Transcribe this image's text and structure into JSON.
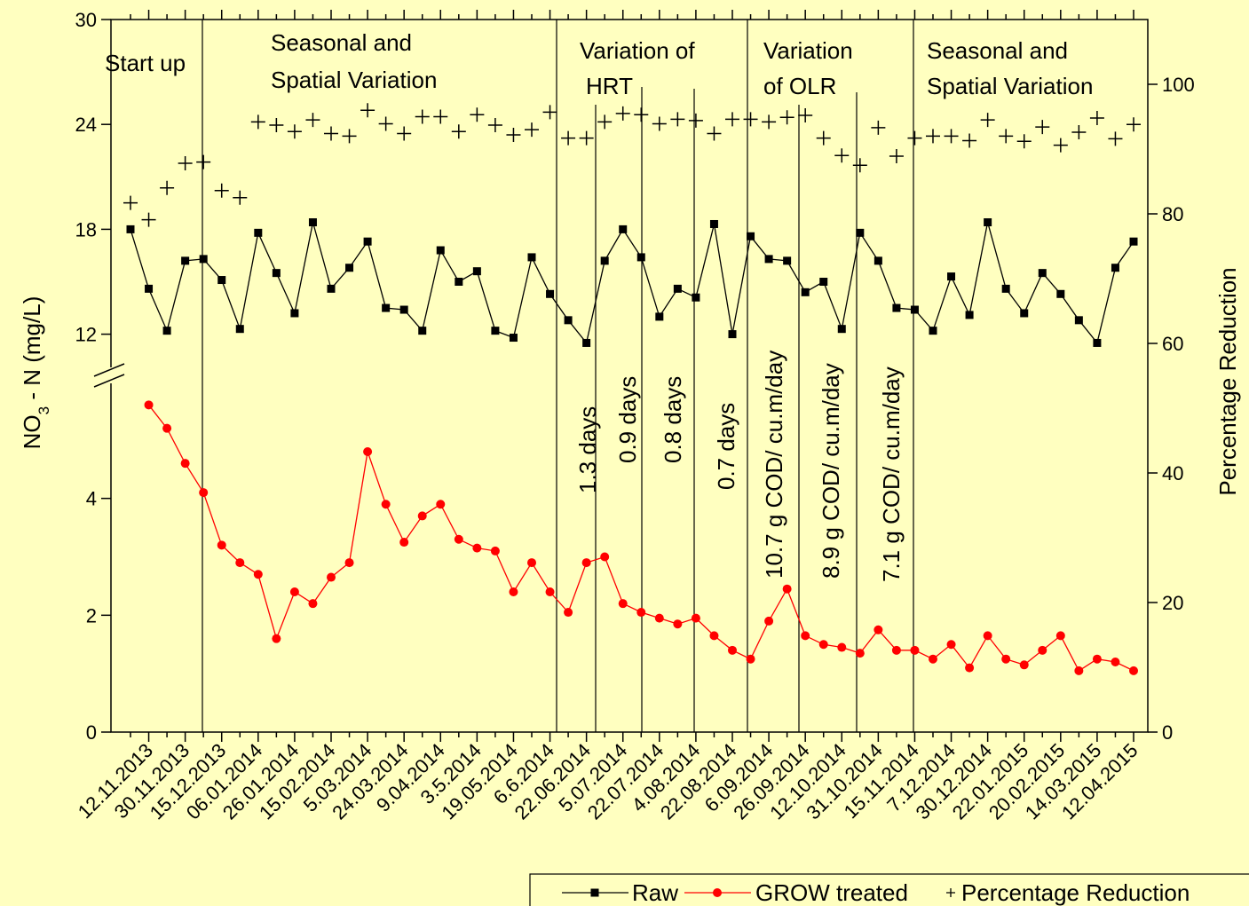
{
  "chart_data": {
    "type": "line",
    "ylabel": [
      "NO",
      "3",
      " - N (mg/L)"
    ],
    "y2label": "Percentage Reduction",
    "categories": [
      null,
      "12.11.2013",
      null,
      "30.11.2013",
      null,
      "15.12.2013",
      null,
      "06.01.2014",
      null,
      "26.01.2014",
      null,
      "15.02.2014",
      null,
      "5.03.2014",
      null,
      "24.03.2014",
      null,
      "9.04.2014",
      null,
      "3.5.2014",
      null,
      "19.05.2014",
      null,
      "6.6.2014",
      null,
      "22.06.2014",
      null,
      "5.07.2014",
      null,
      "22.07.2014",
      null,
      "4.08.2014",
      null,
      "22.08.2014",
      null,
      "6.09.2014",
      null,
      "26.09.2014",
      null,
      "12.10.2014",
      null,
      "31.10.2014",
      null,
      "15.11.2014",
      null,
      "7.12.2014",
      null,
      "30.12.2014",
      null,
      "22.01.2015",
      null,
      "20.02.2015",
      null,
      "14.03.2015",
      null,
      "12.04.2015"
    ],
    "series": [
      {
        "name": "Raw",
        "color": "#000000",
        "marker": "square",
        "line": true,
        "values": [
          18.0,
          14.6,
          12.2,
          16.2,
          16.3,
          15.1,
          12.3,
          17.8,
          15.5,
          13.2,
          18.4,
          14.6,
          15.8,
          17.3,
          13.5,
          13.4,
          12.2,
          16.8,
          15.0,
          15.6,
          12.2,
          11.8,
          16.4,
          14.3,
          12.8,
          11.5,
          16.2,
          18.0,
          16.4,
          13.0,
          14.6,
          14.1,
          18.3,
          12.0,
          17.6,
          16.3,
          16.2,
          14.4,
          15.0,
          12.3,
          17.8,
          16.2,
          13.5,
          13.4,
          12.2,
          15.3,
          13.1,
          18.4,
          14.6,
          13.2,
          15.5,
          14.3,
          12.8,
          11.5,
          15.8,
          17.3
        ]
      },
      {
        "name": "GROW treated",
        "color": "#ff0000",
        "marker": "circle",
        "line": true,
        "values": [
          null,
          5.6,
          5.2,
          4.6,
          4.1,
          3.2,
          2.9,
          2.7,
          1.6,
          2.4,
          2.2,
          2.65,
          2.9,
          4.8,
          3.9,
          3.25,
          3.7,
          3.9,
          3.3,
          3.15,
          3.1,
          2.4,
          2.9,
          2.4,
          2.05,
          2.9,
          3.0,
          2.2,
          2.05,
          1.95,
          1.85,
          1.95,
          1.65,
          1.4,
          1.25,
          1.9,
          2.45,
          1.65,
          1.5,
          1.45,
          1.35,
          1.75,
          1.4,
          1.4,
          1.25,
          1.5,
          1.1,
          1.65,
          1.25,
          1.15,
          1.4,
          1.65,
          1.05,
          1.25,
          1.2,
          1.05
        ]
      },
      {
        "name": "Percentage Reduction",
        "color": "#000000",
        "marker": "plus",
        "line": false,
        "axis": "y2",
        "values": [
          81.7,
          79.1,
          84.0,
          87.8,
          88.0,
          83.6,
          82.5,
          94.2,
          93.7,
          92.7,
          94.5,
          92.4,
          92.0,
          96.0,
          93.9,
          92.4,
          95.0,
          95.0,
          92.7,
          95.3,
          93.7,
          92.2,
          93.0,
          95.7,
          91.7,
          91.7,
          94.2,
          95.5,
          95.3,
          93.9,
          94.6,
          94.4,
          92.4,
          94.6,
          94.6,
          94.2,
          94.9,
          95.2,
          91.7,
          89.0,
          87.5,
          93.3,
          88.9,
          91.7,
          92.0,
          92.0,
          91.3,
          94.5,
          92.0,
          91.2,
          93.4,
          90.6,
          92.6,
          94.8,
          91.6,
          93.8
        ]
      }
    ],
    "ylim": [
      0,
      30
    ],
    "ybreak": [
      6,
      10
    ],
    "yticks": [
      0,
      2,
      4,
      12,
      18,
      24,
      30
    ],
    "y2lim": [
      0,
      110
    ],
    "y2ticks": [
      0,
      20,
      40,
      60,
      80,
      100
    ],
    "legend": "bottom-right",
    "annotations": [
      "Start up",
      "Seasonal and",
      "Spatial Variation",
      "Variation of",
      "HRT",
      "Variation",
      "of OLR",
      "Seasonal and",
      "Spatial Variation"
    ],
    "vertical_annotations": [
      "1.3 days",
      "0.9 days",
      "0.8 days",
      "0.7 days",
      "10.7 g COD/ cu.m/day",
      "8.9 g COD/ cu.m/day",
      "7.1 g COD/ cu.m/day"
    ]
  }
}
